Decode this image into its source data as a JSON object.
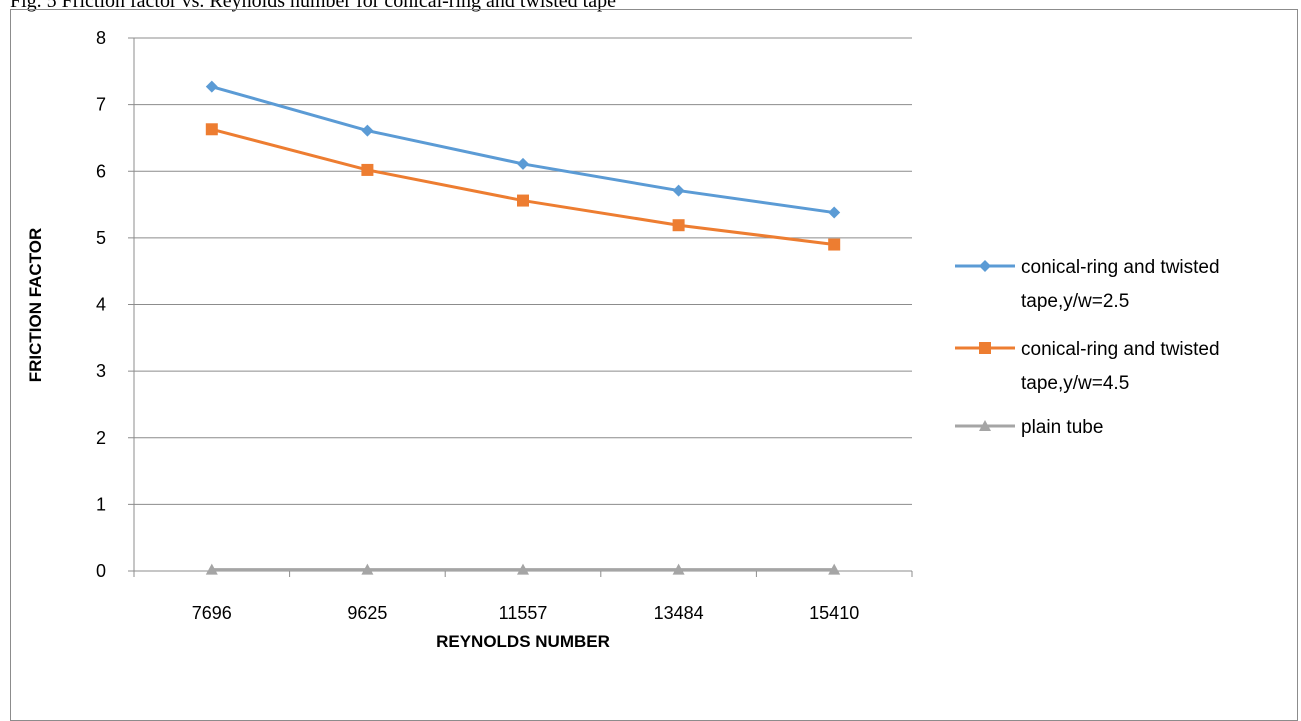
{
  "page": {
    "caption_fragment": "Fig. 5 Friction factor vs. Reynolds number for conical-ring and twisted tape"
  },
  "chart_data": {
    "type": "line",
    "title": "",
    "xlabel": "REYNOLDS NUMBER",
    "ylabel": "FRICTION FACTOR",
    "categories": [
      "7696",
      "9625",
      "11557",
      "13484",
      "15410"
    ],
    "ylim": [
      0,
      8
    ],
    "yticks": [
      0,
      1,
      2,
      3,
      4,
      5,
      6,
      7,
      8
    ],
    "grid": "horizontal",
    "legend_position": "right",
    "series": [
      {
        "name_lines": [
          "conical-ring and twisted",
          "tape,y/w=2.5"
        ],
        "values": [
          7.27,
          6.61,
          6.11,
          5.71,
          5.38
        ],
        "color": "#5b9bd5",
        "marker": "diamond"
      },
      {
        "name_lines": [
          "conical-ring and twisted",
          "tape,y/w=4.5"
        ],
        "values": [
          6.63,
          6.02,
          5.56,
          5.19,
          4.9
        ],
        "color": "#ed7d31",
        "marker": "square"
      },
      {
        "name_lines": [
          "plain tube"
        ],
        "values": [
          0.02,
          0.02,
          0.02,
          0.02,
          0.02
        ],
        "color": "#a5a5a5",
        "marker": "triangle"
      }
    ]
  }
}
